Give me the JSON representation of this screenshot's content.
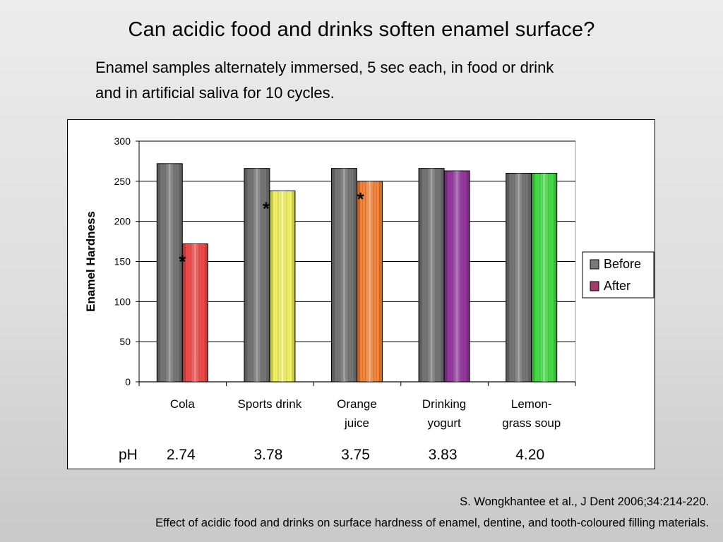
{
  "slide": {
    "title": "Can acidic food and drinks soften enamel surface?",
    "subtitle_line1": "Enamel samples alternately immersed, 5 sec each, in food or drink",
    "subtitle_line2": "and in artificial saliva for 10 cycles.",
    "reference": "S. Wongkhantee et al., J Dent 2006;34:214-220.",
    "caption": "Effect of acidic food and drinks on surface hardness of enamel, dentine, and tooth-coloured filling materials."
  },
  "chart_data": {
    "type": "bar",
    "ylabel": "Enamel Hardness",
    "ylim": [
      0,
      300
    ],
    "yticks": [
      0,
      50,
      100,
      150,
      200,
      250,
      300
    ],
    "grid": true,
    "legend_position": "right",
    "categories": [
      {
        "lines": [
          "Cola"
        ]
      },
      {
        "lines": [
          "Sports drink"
        ]
      },
      {
        "lines": [
          "Orange",
          "juice"
        ]
      },
      {
        "lines": [
          "Drinking",
          "yogurt"
        ]
      },
      {
        "lines": [
          "Lemon-",
          "grass soup"
        ]
      }
    ],
    "series": [
      {
        "name": "Before",
        "values": [
          272,
          266,
          266,
          266,
          260
        ],
        "colors": [
          "#7a7a7a",
          "#7a7a7a",
          "#7a7a7a",
          "#7a7a7a",
          "#7a7a7a"
        ]
      },
      {
        "name": "After",
        "values": [
          172,
          238,
          250,
          263,
          260
        ],
        "colors": [
          "#ff4b4b",
          "#ffff66",
          "#ff8a3d",
          "#9b3aa6",
          "#45e845"
        ]
      }
    ],
    "significance_mark": "*",
    "significant": [
      true,
      true,
      true,
      false,
      false
    ],
    "legend_colors": {
      "Before": "#7a7a7a",
      "After": "#a23a6c"
    },
    "ph_label": "pH",
    "ph_values": [
      "2.74",
      "3.78",
      "3.75",
      "3.83",
      "4.20"
    ]
  }
}
